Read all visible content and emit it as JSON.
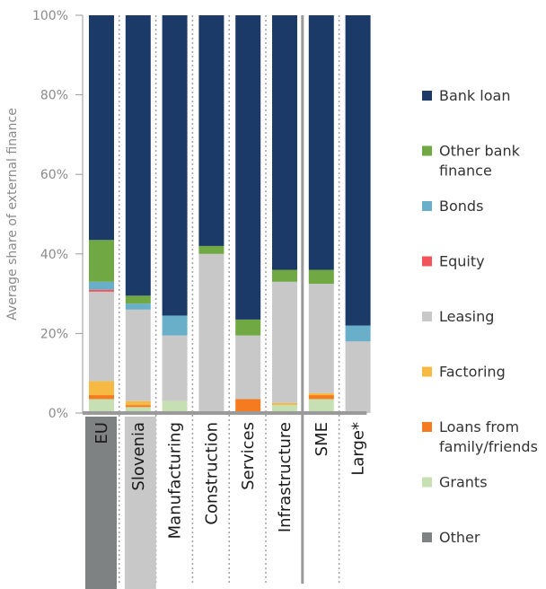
{
  "chart_data": {
    "type": "bar",
    "stacked": true,
    "ylabel": "Average share of external finance",
    "yticks": [
      "0%",
      "20%",
      "40%",
      "60%",
      "80%",
      "100%"
    ],
    "ylim": [
      0,
      100
    ],
    "categories": [
      "EU",
      "Slovenia",
      "Manufacturing",
      "Construction",
      "Services",
      "Infrastructure",
      "SME",
      "Large*"
    ],
    "category_label_colors": {
      "EU": "#7f8283",
      "Slovenia": "#c8c8c8"
    },
    "series": [
      {
        "name": "Grants",
        "color": "#c6e0b4",
        "values": [
          3.5,
          1.5,
          3,
          0,
          0,
          2,
          3.5,
          0
        ]
      },
      {
        "name": "Loans from family/friends",
        "color": "#f47b20",
        "values": [
          1,
          0.5,
          0,
          0,
          3.5,
          0,
          1,
          0
        ]
      },
      {
        "name": "Factoring",
        "color": "#f6b941",
        "values": [
          3.5,
          1,
          0,
          0,
          0,
          0.5,
          0.5,
          0
        ]
      },
      {
        "name": "Leasing",
        "color": "#c8c8c8",
        "values": [
          22.5,
          23,
          16.5,
          40,
          16,
          30.5,
          27.5,
          18
        ]
      },
      {
        "name": "Equity",
        "color": "#f2545b",
        "values": [
          0.5,
          0,
          0,
          0,
          0,
          0,
          0,
          0
        ]
      },
      {
        "name": "Bonds",
        "color": "#6aafc9",
        "values": [
          2,
          1.5,
          5,
          0,
          0,
          0,
          0,
          4
        ]
      },
      {
        "name": "Other bank finance",
        "color": "#70a844",
        "values": [
          10.5,
          2,
          0,
          2,
          4,
          3,
          3.5,
          0
        ]
      },
      {
        "name": "Bank loan",
        "color": "#1b3a68",
        "values": [
          56.5,
          70.5,
          75.5,
          58,
          76.5,
          64,
          64,
          78
        ]
      },
      {
        "name": "Other",
        "color": "#7f8283",
        "values": [
          0,
          0,
          0,
          0,
          0,
          0,
          0,
          0
        ]
      }
    ],
    "legend": [
      {
        "label": "Bank loan",
        "color": "#1b3a68"
      },
      {
        "label": "Other bank finance",
        "color": "#70a844"
      },
      {
        "label": "Bonds",
        "color": "#6aafc9"
      },
      {
        "label": "Equity",
        "color": "#f2545b"
      },
      {
        "label": "Leasing",
        "color": "#c8c8c8"
      },
      {
        "label": "Factoring",
        "color": "#f6b941"
      },
      {
        "label": "Loans from family/friends",
        "color": "#f47b20"
      },
      {
        "label": "Grants",
        "color": "#c6e0b4"
      },
      {
        "label": "Other",
        "color": "#7f8283"
      }
    ],
    "legend_placement": "right",
    "grid": false
  }
}
